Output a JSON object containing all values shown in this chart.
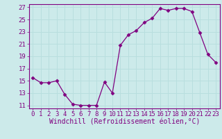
{
  "x": [
    0,
    1,
    2,
    3,
    4,
    5,
    6,
    7,
    8,
    9,
    10,
    11,
    12,
    13,
    14,
    15,
    16,
    17,
    18,
    19,
    20,
    21,
    22,
    23
  ],
  "y": [
    15.5,
    14.7,
    14.7,
    15.0,
    12.8,
    11.2,
    11.0,
    11.0,
    11.0,
    14.8,
    13.0,
    20.8,
    22.5,
    23.2,
    24.5,
    25.2,
    26.8,
    26.5,
    26.8,
    26.8,
    26.3,
    22.8,
    19.3,
    18.0
  ],
  "line_color": "#800080",
  "marker": "D",
  "marker_size": 2.5,
  "bg_color": "#cceaea",
  "grid_color": "#aadddd",
  "xlabel": "Windchill (Refroidissement éolien,°C)",
  "xlabel_color": "#800080",
  "tick_color": "#800080",
  "xlim": [
    -0.5,
    23.5
  ],
  "ylim": [
    10.5,
    27.5
  ],
  "yticks": [
    11,
    13,
    15,
    17,
    19,
    21,
    23,
    25,
    27
  ],
  "xticks": [
    0,
    1,
    2,
    3,
    4,
    5,
    6,
    7,
    8,
    9,
    10,
    11,
    12,
    13,
    14,
    15,
    16,
    17,
    18,
    19,
    20,
    21,
    22,
    23
  ],
  "xtick_labels": [
    "0",
    "1",
    "2",
    "3",
    "4",
    "5",
    "6",
    "7",
    "8",
    "9",
    "10",
    "11",
    "12",
    "13",
    "14",
    "15",
    "16",
    "17",
    "18",
    "19",
    "20",
    "21",
    "22",
    "23"
  ],
  "ytick_labels": [
    "11",
    "13",
    "15",
    "17",
    "19",
    "21",
    "23",
    "25",
    "27"
  ],
  "font_size": 6.5,
  "label_font_size": 7
}
